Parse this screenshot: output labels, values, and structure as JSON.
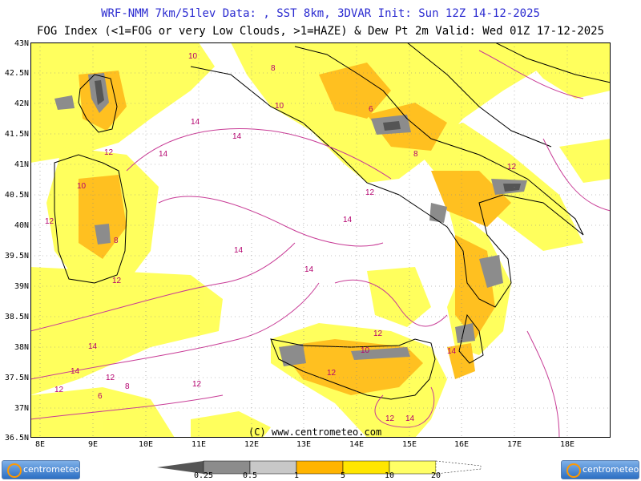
{
  "header": {
    "line1": "WRF-NMM 7km/51lev   Data: , SST 8km, 3DVAR   Init: Sun 12Z 14-12-2025",
    "line2": "FOG Index (<1=FOG or very Low Clouds, >1=HAZE) & Dew Pt 2m   Valid: Wed 01Z 17-12-2025"
  },
  "axes": {
    "lat_labels": [
      "43N",
      "42.5N",
      "42N",
      "41.5N",
      "41N",
      "40.5N",
      "40N",
      "39.5N",
      "39N",
      "38.5N",
      "38N",
      "37.5N",
      "37N",
      "36.5N"
    ],
    "lon_labels": [
      "8E",
      "9E",
      "10E",
      "11E",
      "12E",
      "13E",
      "14E",
      "15E",
      "16E",
      "17E",
      "18E"
    ]
  },
  "contour_labels": [
    "10",
    "8",
    "10",
    "6",
    "8",
    "14",
    "12",
    "14",
    "12",
    "10",
    "12",
    "8",
    "12",
    "14",
    "14",
    "14",
    "12",
    "14",
    "12",
    "14",
    "14",
    "12",
    "10",
    "12",
    "12",
    "14",
    "12",
    "8",
    "6",
    "14",
    "12"
  ],
  "copyright": "(C) www.centrometeo.com",
  "logos": {
    "left": "centrometeo",
    "right": "centrometeo"
  },
  "legend": {
    "labels": [
      "0.25",
      "0.5",
      "1",
      "5",
      "10",
      "20"
    ],
    "colors": [
      "#555555",
      "#8c8c8c",
      "#c8c8c8",
      "#ffb400",
      "#ffe600",
      "#ffff66"
    ]
  },
  "colors": {
    "title_blue": "#2a2ad0",
    "contour": "#b4006e",
    "coast": "#000000",
    "dewpt_line": "#c83c96"
  }
}
